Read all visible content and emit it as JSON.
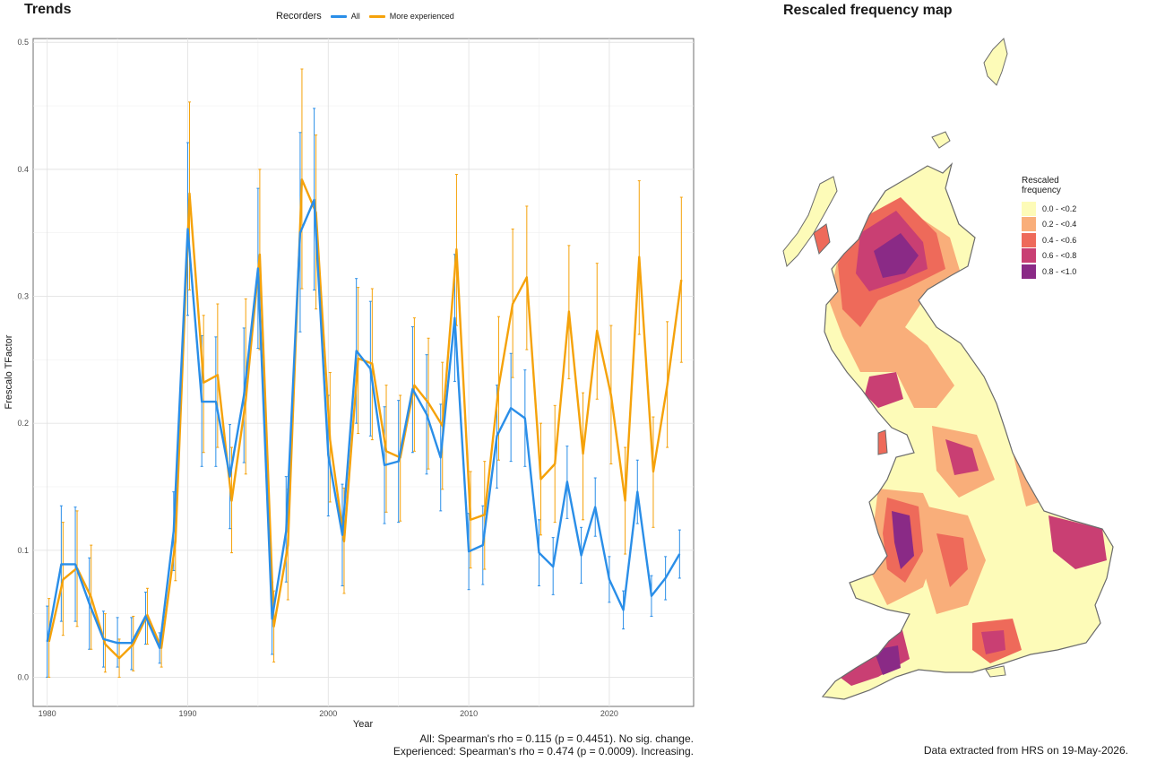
{
  "trends_title": "Trends",
  "map_title": "Rescaled frequency map",
  "legend": {
    "title": "Recorders",
    "items": [
      {
        "label": "All",
        "color": "#2a8ee8"
      },
      {
        "label": "More experienced",
        "color": "#f5a20a"
      }
    ]
  },
  "chart_data": {
    "type": "line",
    "title": "",
    "xlabel": "Year",
    "ylabel": "Frescalo TFactor",
    "xlim": [
      1979,
      2026
    ],
    "ylim": [
      -0.023,
      0.503
    ],
    "x_ticks": [
      1980,
      1990,
      2000,
      2010,
      2020
    ],
    "y_ticks": [
      0.0,
      0.1,
      0.2,
      0.3,
      0.4,
      0.5
    ],
    "y_tick_labels": [
      "0.0",
      "0.1",
      "0.2",
      "0.3",
      "0.4",
      "0.5"
    ],
    "grid": true,
    "legend_position": "top",
    "x": [
      1980,
      1981,
      1982,
      1983,
      1984,
      1985,
      1986,
      1987,
      1988,
      1989,
      1990,
      1991,
      1992,
      1993,
      1994,
      1995,
      1996,
      1997,
      1998,
      1999,
      2000,
      2001,
      2002,
      2003,
      2004,
      2005,
      2006,
      2007,
      2008,
      2009,
      2010,
      2011,
      2012,
      2013,
      2014,
      2015,
      2016,
      2017,
      2018,
      2019,
      2020,
      2021,
      2022,
      2023,
      2024,
      2025
    ],
    "series": [
      {
        "name": "All",
        "color": "#2a8ee8",
        "values": [
          0.028,
          0.089,
          0.089,
          0.058,
          0.03,
          0.027,
          0.027,
          0.048,
          0.023,
          0.115,
          0.353,
          0.217,
          0.217,
          0.158,
          0.222,
          0.322,
          0.046,
          0.115,
          0.35,
          0.376,
          0.175,
          0.112,
          0.257,
          0.243,
          0.167,
          0.17,
          0.227,
          0.207,
          0.173,
          0.283,
          0.099,
          0.104,
          0.19,
          0.212,
          0.204,
          0.098,
          0.087,
          0.154,
          0.096,
          0.134,
          0.077,
          0.053,
          0.146,
          0.064,
          0.078,
          0.097
        ],
        "lower": [
          0.0,
          0.044,
          0.044,
          0.022,
          0.008,
          0.008,
          0.006,
          0.026,
          0.011,
          0.084,
          0.285,
          0.166,
          0.166,
          0.117,
          0.169,
          0.259,
          0.018,
          0.075,
          0.272,
          0.305,
          0.127,
          0.072,
          0.2,
          0.19,
          0.121,
          0.122,
          0.177,
          0.16,
          0.131,
          0.233,
          0.069,
          0.073,
          0.149,
          0.17,
          0.166,
          0.072,
          0.065,
          0.125,
          0.074,
          0.111,
          0.059,
          0.038,
          0.121,
          0.048,
          0.061,
          0.078
        ],
        "upper": [
          0.056,
          0.135,
          0.134,
          0.094,
          0.052,
          0.047,
          0.047,
          0.067,
          0.035,
          0.146,
          0.421,
          0.269,
          0.268,
          0.199,
          0.275,
          0.385,
          0.075,
          0.158,
          0.429,
          0.448,
          0.222,
          0.152,
          0.314,
          0.296,
          0.213,
          0.218,
          0.276,
          0.254,
          0.215,
          0.333,
          0.129,
          0.135,
          0.23,
          0.255,
          0.242,
          0.124,
          0.11,
          0.182,
          0.118,
          0.157,
          0.095,
          0.068,
          0.171,
          0.08,
          0.095,
          0.116
        ]
      },
      {
        "name": "More experienced",
        "color": "#f5a20a",
        "values": [
          0.028,
          0.077,
          0.086,
          0.063,
          0.026,
          0.015,
          0.026,
          0.049,
          0.023,
          0.107,
          0.381,
          0.232,
          0.238,
          0.139,
          0.218,
          0.333,
          0.04,
          0.104,
          0.392,
          0.366,
          0.187,
          0.107,
          0.251,
          0.247,
          0.178,
          0.173,
          0.23,
          0.216,
          0.198,
          0.337,
          0.124,
          0.128,
          0.229,
          0.294,
          0.315,
          0.156,
          0.168,
          0.288,
          0.176,
          0.273,
          0.222,
          0.139,
          0.331,
          0.162,
          0.23,
          0.313
        ],
        "lower": [
          0.0,
          0.033,
          0.04,
          0.022,
          0.004,
          0.0,
          0.005,
          0.026,
          0.008,
          0.076,
          0.305,
          0.177,
          0.181,
          0.098,
          0.16,
          0.258,
          0.012,
          0.061,
          0.306,
          0.29,
          0.138,
          0.066,
          0.192,
          0.187,
          0.13,
          0.123,
          0.178,
          0.164,
          0.148,
          0.277,
          0.086,
          0.085,
          0.171,
          0.236,
          0.258,
          0.112,
          0.122,
          0.235,
          0.124,
          0.219,
          0.168,
          0.097,
          0.27,
          0.118,
          0.181,
          0.248
        ],
        "upper": [
          0.062,
          0.122,
          0.131,
          0.104,
          0.05,
          0.03,
          0.048,
          0.07,
          0.033,
          0.14,
          0.453,
          0.285,
          0.294,
          0.181,
          0.298,
          0.4,
          0.068,
          0.148,
          0.479,
          0.427,
          0.24,
          0.149,
          0.307,
          0.306,
          0.23,
          0.222,
          0.283,
          0.267,
          0.248,
          0.396,
          0.162,
          0.17,
          0.284,
          0.353,
          0.371,
          0.2,
          0.214,
          0.34,
          0.224,
          0.326,
          0.277,
          0.181,
          0.391,
          0.205,
          0.28,
          0.378
        ]
      }
    ]
  },
  "footnotes": {
    "all": "All: Spearman's rho = 0.115 (p = 0.4451). No sig. change.",
    "experienced": "Experienced: Spearman's rho = 0.474 (p = 0.0009). Increasing.",
    "data_source": "Data extracted from HRS on 19-May-2026."
  },
  "map_legend": {
    "title_line1": "Rescaled",
    "title_line2": "frequency",
    "classes": [
      {
        "label": "0.0 - <0.2",
        "color": "#fdfbb8"
      },
      {
        "label": "0.2 - <0.4",
        "color": "#f9ae7a"
      },
      {
        "label": "0.4 - <0.6",
        "color": "#ee6a5a"
      },
      {
        "label": "0.6 - <0.8",
        "color": "#c93f73"
      },
      {
        "label": "0.8 - <1.0",
        "color": "#8a2a86"
      }
    ]
  }
}
